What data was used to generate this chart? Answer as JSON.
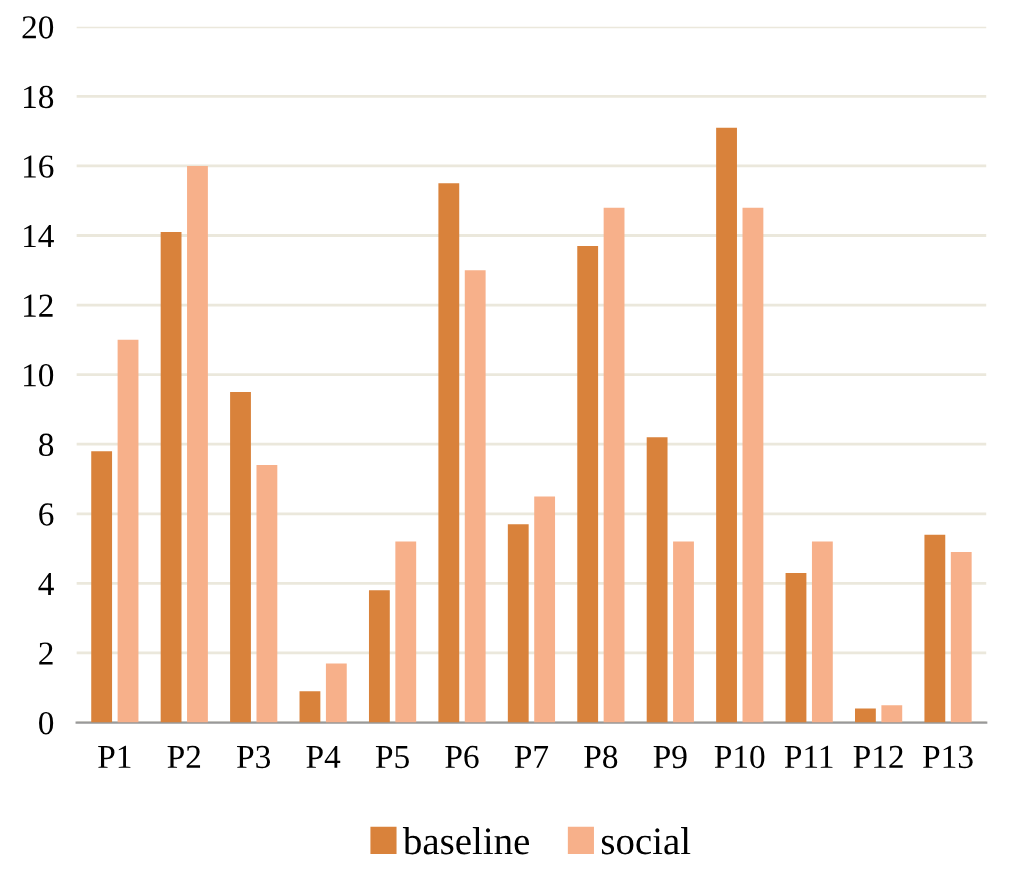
{
  "chart_data": {
    "type": "bar",
    "categories": [
      "P1",
      "P2",
      "P3",
      "P4",
      "P5",
      "P6",
      "P7",
      "P8",
      "P9",
      "P10",
      "P11",
      "P12",
      "P13"
    ],
    "series": [
      {
        "name": "baseline",
        "color": "#d9823b",
        "values": [
          7.8,
          14.1,
          9.5,
          0.9,
          3.8,
          15.5,
          5.7,
          13.7,
          8.2,
          17.1,
          4.3,
          0.4,
          5.4
        ]
      },
      {
        "name": "social",
        "color": "#f7b08a",
        "values": [
          11.0,
          16.0,
          7.4,
          1.7,
          5.2,
          13.0,
          6.5,
          14.8,
          5.2,
          14.8,
          5.2,
          0.5,
          4.9
        ]
      }
    ],
    "ylim": [
      0,
      20
    ],
    "yticks": [
      0,
      2,
      4,
      6,
      8,
      10,
      12,
      14,
      16,
      18,
      20
    ],
    "grid": "y",
    "legend": "bottom"
  }
}
